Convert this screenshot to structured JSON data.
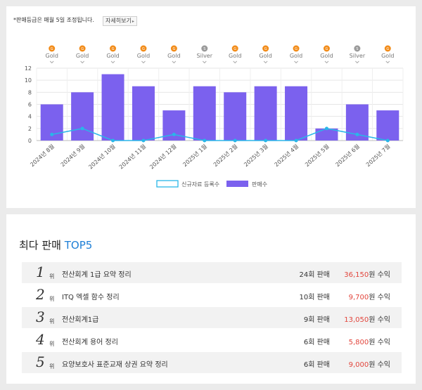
{
  "notice": {
    "text": "*판매등급은 매월 5일 조정됩니다.",
    "detail_button": "자세히보기"
  },
  "grades": [
    {
      "icon": "G",
      "label": "Gold",
      "color": "#f28c1a"
    },
    {
      "icon": "G",
      "label": "Gold",
      "color": "#f28c1a"
    },
    {
      "icon": "G",
      "label": "Gold",
      "color": "#f28c1a"
    },
    {
      "icon": "G",
      "label": "Gold",
      "color": "#f28c1a"
    },
    {
      "icon": "G",
      "label": "Gold",
      "color": "#f28c1a"
    },
    {
      "icon": "S",
      "label": "Silver",
      "color": "#9a9a9a"
    },
    {
      "icon": "G",
      "label": "Gold",
      "color": "#f28c1a"
    },
    {
      "icon": "G",
      "label": "Gold",
      "color": "#f28c1a"
    },
    {
      "icon": "G",
      "label": "Gold",
      "color": "#f28c1a"
    },
    {
      "icon": "G",
      "label": "Gold",
      "color": "#f28c1a"
    },
    {
      "icon": "S",
      "label": "Silver",
      "color": "#9a9a9a"
    },
    {
      "icon": "G",
      "label": "Gold",
      "color": "#f28c1a"
    }
  ],
  "chart_data": {
    "type": "bar",
    "categories": [
      "2024년 8월",
      "2024년 9월",
      "2024년 10월",
      "2024년 11월",
      "2024년 12월",
      "2025년 1월",
      "2025년 2월",
      "2025년 3월",
      "2025년 4월",
      "2025년 5월",
      "2025년 6월",
      "2025년 7월"
    ],
    "series": [
      {
        "name": "신규자료 등록수",
        "kind": "line",
        "color": "#29b6e8",
        "values": [
          1,
          2,
          0,
          0,
          1,
          0,
          0,
          0,
          0,
          2,
          1,
          0
        ]
      },
      {
        "name": "판매수",
        "kind": "bar",
        "color": "#7b61ee",
        "values": [
          6,
          8,
          11,
          9,
          5,
          9,
          8,
          9,
          9,
          2,
          6,
          5
        ]
      }
    ],
    "yticks": [
      0,
      2,
      4,
      6,
      8,
      10,
      12
    ],
    "ylim": [
      0,
      12
    ],
    "grid": true,
    "legend_position": "bottom-center"
  },
  "top5": {
    "title": "최다 판매",
    "title_accent": "TOP5",
    "rank_suffix": "위",
    "items": [
      {
        "rank": "1",
        "title": "전산회계 1급 요약 정리",
        "sales": "24회 판매",
        "amount": "36,150",
        "unit": "원 수익"
      },
      {
        "rank": "2",
        "title": "ITQ 엑셀 함수 정리",
        "sales": "10회 판매",
        "amount": "9,700",
        "unit": "원 수익"
      },
      {
        "rank": "3",
        "title": "전산회계1급",
        "sales": "9회 판매",
        "amount": "13,050",
        "unit": "원 수익"
      },
      {
        "rank": "4",
        "title": "전산회계 용어 정리",
        "sales": "6회 판매",
        "amount": "5,800",
        "unit": "원 수익"
      },
      {
        "rank": "5",
        "title": "요양보호사 표준교재 상권 요약 정리",
        "sales": "6회 판매",
        "amount": "9,000",
        "unit": "원 수익"
      }
    ]
  }
}
